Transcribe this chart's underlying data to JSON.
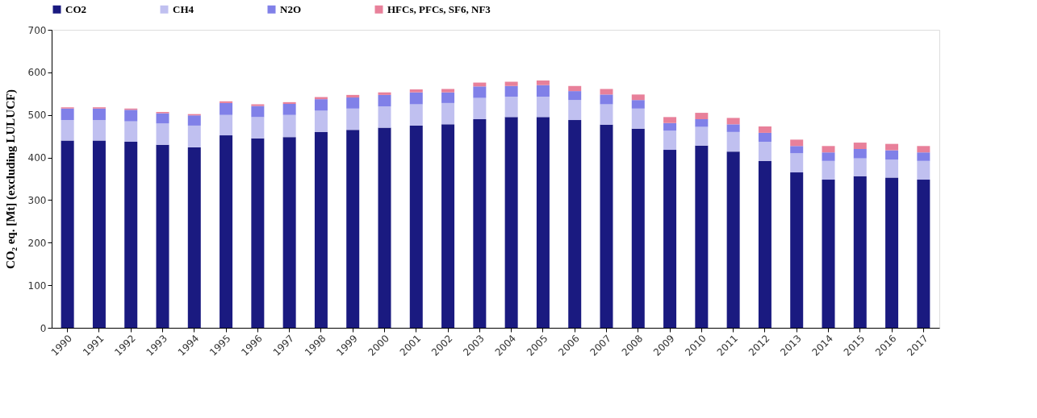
{
  "chart_data": {
    "type": "bar",
    "stacked": true,
    "ylabel": "CO₂ eq. [Mt] (excluding LULUCF)",
    "categories": [
      "1990",
      "1991",
      "1992",
      "1993",
      "1994",
      "1995",
      "1996",
      "1997",
      "1998",
      "1999",
      "2000",
      "2001",
      "2002",
      "2003",
      "2004",
      "2005",
      "2006",
      "2007",
      "2008",
      "2009",
      "2010",
      "2011",
      "2012",
      "2013",
      "2014",
      "2015",
      "2016",
      "2017"
    ],
    "series": [
      {
        "name": "CO2",
        "color": "#1a1a80",
        "values": [
          440,
          440,
          437,
          430,
          424,
          452,
          445,
          448,
          460,
          465,
          470,
          475,
          478,
          490,
          495,
          495,
          488,
          477,
          468,
          418,
          428,
          414,
          392,
          365,
          348,
          356,
          353,
          348
        ]
      },
      {
        "name": "CH4",
        "color": "#c0c0f0",
        "values": [
          48,
          48,
          48,
          50,
          51,
          48,
          50,
          52,
          50,
          50,
          50,
          50,
          50,
          50,
          48,
          48,
          47,
          48,
          47,
          45,
          44,
          46,
          45,
          45,
          44,
          42,
          42,
          44
        ]
      },
      {
        "name": "N2O",
        "color": "#8080e8",
        "values": [
          27,
          27,
          27,
          24,
          24,
          28,
          26,
          26,
          27,
          26,
          27,
          28,
          25,
          27,
          25,
          27,
          21,
          23,
          20,
          18,
          18,
          18,
          21,
          17,
          20,
          22,
          22,
          20
        ]
      },
      {
        "name": "HFCs, PFCs, SF6, NF3",
        "color": "#e8809a",
        "values": [
          3,
          3,
          3,
          3,
          3,
          4,
          4,
          4,
          5,
          6,
          6,
          7,
          8,
          9,
          10,
          11,
          12,
          13,
          13,
          14,
          15,
          15,
          15,
          15,
          15,
          15,
          15,
          15
        ]
      }
    ],
    "ylim": [
      0,
      700
    ],
    "yticks": [
      0,
      100,
      200,
      300,
      400,
      500,
      600,
      700
    ],
    "grid": false,
    "legend": "top"
  }
}
